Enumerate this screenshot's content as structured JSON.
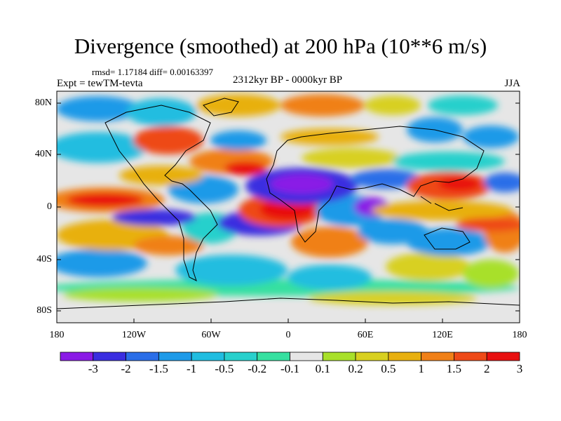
{
  "title": "Divergence (smoothed) at 200 hPa (10**6 m/s)",
  "stats": "rmsd= 1.17184  diff= 0.00163397",
  "experiment": "Expt = tewTM-tevta",
  "period": "2312kyr BP - 0000kyr BP",
  "season": "JJA",
  "lat_ticks": [
    "80N",
    "40N",
    "0",
    "40S",
    "80S"
  ],
  "lon_ticks": [
    "180",
    "120W",
    "60W",
    "0",
    "60E",
    "120E",
    "180"
  ],
  "colorbar": {
    "labels": [
      "-3",
      "-2",
      "-1.5",
      "-1",
      "-0.5",
      "-0.2",
      "-0.1",
      "0.1",
      "0.2",
      "0.5",
      "1",
      "1.5",
      "2",
      "3"
    ],
    "colors": [
      "#8a1ae6",
      "#3a2ee0",
      "#2a6ee8",
      "#1e9ae8",
      "#20bde0",
      "#28d0cc",
      "#36e0a0",
      "#e6e6e6",
      "#a8e02a",
      "#d8d020",
      "#e8b010",
      "#f08018",
      "#ee4a18",
      "#e81010"
    ]
  },
  "palette": {
    "neutral": "#e6e6e6",
    "coastline": "#000000"
  }
}
